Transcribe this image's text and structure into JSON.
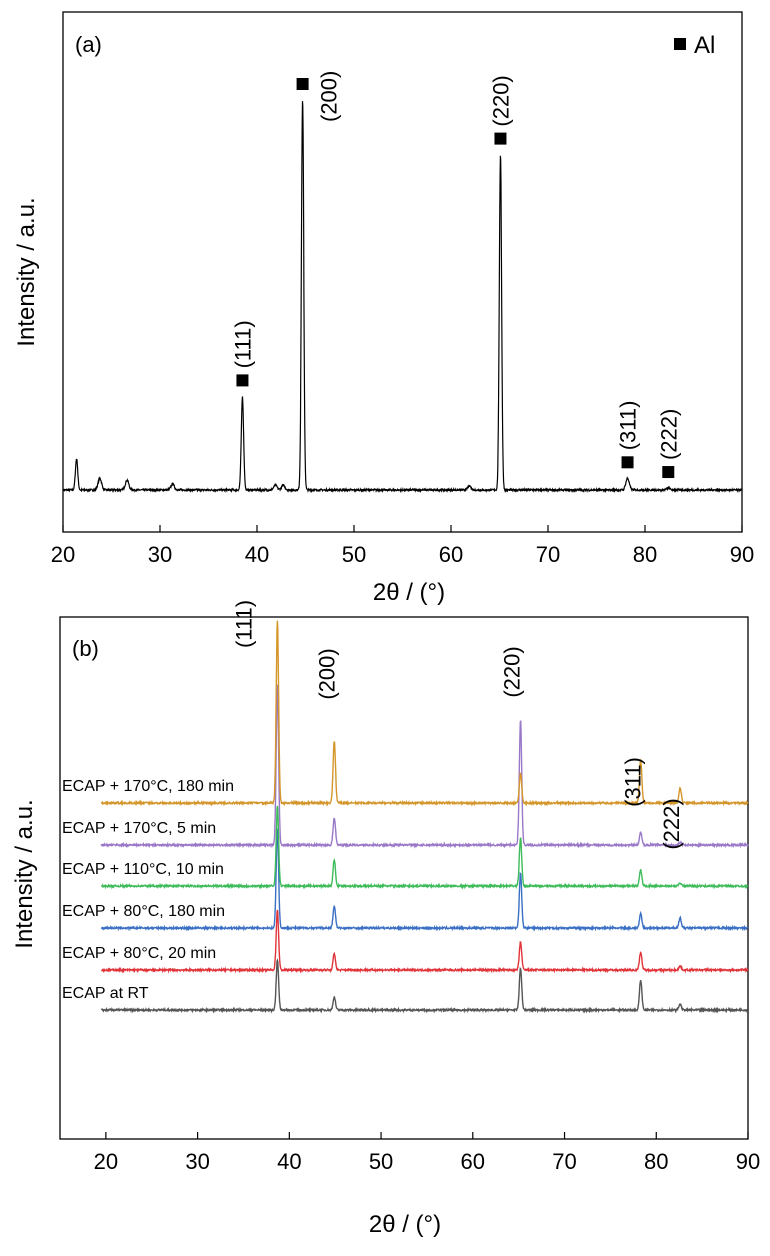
{
  "chart_data": [
    {
      "type": "line",
      "panel_label": "(a)",
      "xlabel_text": "2θ / (°)",
      "ylabel": "Intensity / a.u.",
      "xlim": [
        20,
        90
      ],
      "ylim": [
        0,
        105
      ],
      "xticks": [
        "20",
        "30",
        "40",
        "50",
        "60",
        "70",
        "80",
        "90"
      ],
      "legend": {
        "marker": "square",
        "label": "Al",
        "placement": "top-right"
      },
      "peaks": [
        {
          "label": "(111)",
          "x": 38.5,
          "height": 24
        },
        {
          "label": "(200)",
          "x": 44.7,
          "height": 100
        },
        {
          "label": "(220)",
          "x": 65.1,
          "height": 86
        },
        {
          "label": "(311)",
          "x": 78.2,
          "height": 3
        },
        {
          "label": "(222)",
          "x": 82.4,
          "height": 0.5
        }
      ],
      "minor_peaks": [
        {
          "x": 21.4,
          "height": 8
        },
        {
          "x": 23.8,
          "height": 3
        },
        {
          "x": 26.6,
          "height": 2.5
        },
        {
          "x": 31.3,
          "height": 1.5
        },
        {
          "x": 41.9,
          "height": 1.2
        },
        {
          "x": 42.7,
          "height": 1.2
        },
        {
          "x": 61.9,
          "height": 1
        }
      ],
      "baseline": 3
    },
    {
      "type": "line",
      "panel_label": "(b)",
      "xlabel_text": "2θ / (°)",
      "ylabel": "Intensity / a.u.",
      "xlim": [
        15,
        90
      ],
      "xticks": [
        "20",
        "30",
        "40",
        "50",
        "60",
        "70",
        "80",
        "90"
      ],
      "peak_labels": [
        {
          "label": "(111)",
          "x": 38.3
        },
        {
          "label": "(200)",
          "x": 44.9
        },
        {
          "label": "(220)",
          "x": 65.1
        },
        {
          "label": "(311)",
          "x": 78.3
        },
        {
          "label": "(222)",
          "x": 82.5
        }
      ],
      "peak_positions": [
        38.7,
        44.9,
        65.2,
        78.3,
        82.6
      ],
      "series": [
        {
          "name": "ECAP at RT",
          "color": "#555555",
          "heights": [
            50,
            13,
            42,
            30,
            6
          ]
        },
        {
          "name": "ECAP + 80°C, 20 min",
          "color": "#e0343a",
          "heights": [
            60,
            16,
            28,
            18,
            4
          ]
        },
        {
          "name": "ECAP + 80°C, 180 min",
          "color": "#3a6fc4",
          "heights": [
            100,
            22,
            55,
            14,
            10
          ]
        },
        {
          "name": "ECAP + 110°C, 10 min",
          "color": "#3ebb5a",
          "heights": [
            80,
            26,
            48,
            16,
            3
          ]
        },
        {
          "name": "ECAP + 170°C, 5 min",
          "color": "#9a78c8",
          "heights": [
            160,
            27,
            125,
            13,
            3
          ]
        },
        {
          "name": "ECAP + 170°C, 180 min",
          "color": "#d4962a",
          "heights": [
            182,
            62,
            30,
            43,
            15
          ]
        }
      ]
    }
  ]
}
